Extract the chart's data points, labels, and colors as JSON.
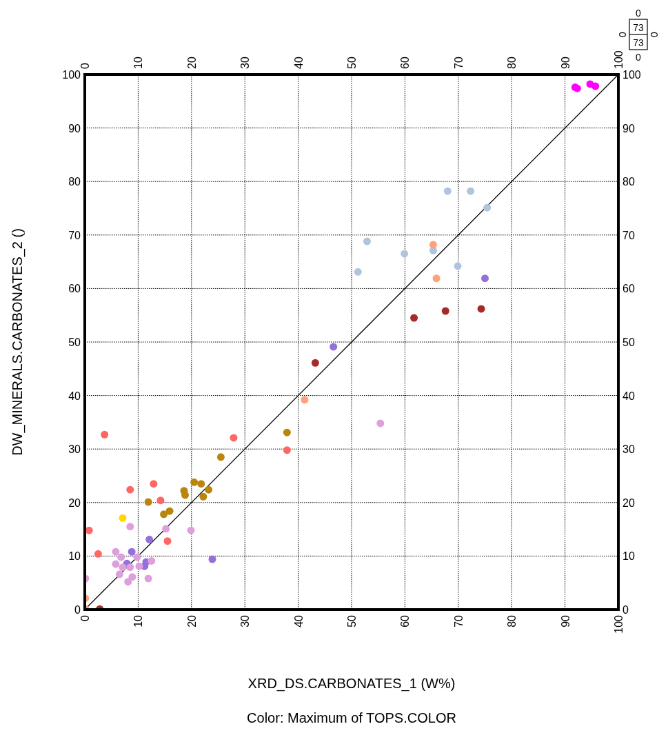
{
  "chart_data": {
    "type": "scatter",
    "xlabel": "XRD_DS.CARBONATES_1 (W%)",
    "ylabel": "DW_MINERALS.CARBONATES_2 ()",
    "annotations": [
      "Color: Maximum of TOPS.COLOR",
      "0",
      "73",
      "73",
      "0",
      "0",
      "0"
    ],
    "xlim": [
      0,
      100
    ],
    "xticks": [
      0,
      10,
      20,
      30,
      40,
      50,
      60,
      70,
      80,
      90,
      100
    ],
    "x2lim": [
      0,
      100
    ],
    "x2ticks": [
      0,
      10,
      20,
      30,
      40,
      50,
      60,
      70,
      80,
      90,
      100
    ],
    "ylim": [
      0,
      100
    ],
    "yticks": [
      0,
      10,
      20,
      30,
      40,
      50,
      60,
      70,
      80,
      90,
      100
    ],
    "y2lim": [
      0,
      100
    ],
    "y2ticks": [
      0,
      10,
      20,
      30,
      40,
      50,
      60,
      70,
      80,
      90,
      100
    ],
    "grid": true,
    "marker": "circle",
    "series": [
      {
        "type": "line",
        "marker": "none",
        "color": "#000000",
        "x": [
          0,
          100
        ],
        "values": [
          0,
          100
        ]
      },
      {
        "color": "#ff00ff",
        "x": [
          91.9,
          92.3,
          94.7,
          95.7
        ],
        "values": [
          97.6,
          97.4,
          98.2,
          97.8
        ]
      },
      {
        "color": "#b0c4de",
        "x": [
          68.0,
          72.3,
          75.4,
          52.9,
          59.9,
          65.3,
          69.9,
          51.2
        ],
        "values": [
          78.2,
          78.2,
          75.1,
          68.8,
          66.5,
          67.1,
          64.2,
          63.1
        ]
      },
      {
        "color": "#ffa07a",
        "x": [
          65.3,
          65.9,
          41.2,
          0.1,
          0.1
        ],
        "values": [
          68.2,
          61.9,
          39.2,
          2.1,
          0.1
        ]
      },
      {
        "color": "#a52a2a",
        "x": [
          61.7,
          67.6,
          74.3,
          43.2,
          2.8
        ],
        "values": [
          54.5,
          55.8,
          56.2,
          46.1,
          0.1
        ]
      },
      {
        "color": "#9370db",
        "x": [
          75.0,
          46.6,
          12.1,
          8.8,
          23.9,
          7.9,
          11.5,
          11.2
        ],
        "values": [
          61.9,
          49.1,
          13.1,
          10.8,
          9.4,
          8.6,
          8.9,
          8.1
        ]
      },
      {
        "color": "#ff6666",
        "x": [
          8.5,
          12.9,
          14.2,
          0.8,
          2.5,
          15.5,
          3.7,
          27.9,
          37.9
        ],
        "values": [
          22.4,
          23.5,
          20.4,
          14.8,
          10.4,
          12.8,
          32.7,
          32.1,
          29.8
        ]
      },
      {
        "color": "#b8860b",
        "x": [
          25.5,
          37.9,
          20.5,
          21.8,
          23.2,
          22.2,
          18.6,
          18.8,
          11.9,
          14.8,
          15.9
        ],
        "values": [
          28.5,
          33.1,
          23.8,
          23.5,
          22.4,
          21.1,
          22.2,
          21.4,
          20.1,
          17.8,
          18.4
        ]
      },
      {
        "color": "#ffd700",
        "x": [
          7.1
        ],
        "values": [
          17.1
        ]
      },
      {
        "color": "#dda0dd",
        "x": [
          55.4,
          8.5,
          15.2,
          19.9,
          5.8,
          6.8,
          9.8,
          12.5,
          5.8,
          7.1,
          8.5,
          10.2,
          6.5,
          8.9,
          8.1,
          11.9,
          0.1
        ],
        "values": [
          34.8,
          15.5,
          15.1,
          14.8,
          10.8,
          9.8,
          9.8,
          9.1,
          8.5,
          7.9,
          7.9,
          8.1,
          6.6,
          6.1,
          5.2,
          5.8,
          5.8
        ]
      }
    ]
  }
}
